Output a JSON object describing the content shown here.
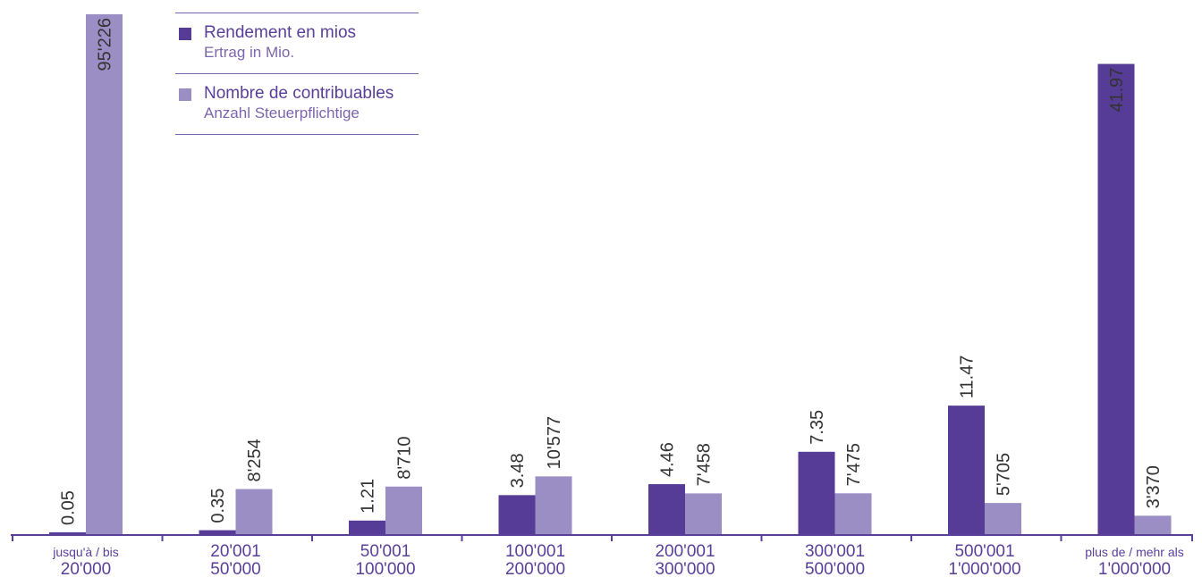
{
  "chart_data": {
    "type": "bar",
    "title": "",
    "xlabel": "",
    "ylabel": "",
    "categories": [
      {
        "top": "jusqu'à / bis",
        "bottom": "20'000"
      },
      {
        "top": "20'001",
        "bottom": "50'000"
      },
      {
        "top": "50'001",
        "bottom": "100'000"
      },
      {
        "top": "100'001",
        "bottom": "200'000"
      },
      {
        "top": "200'001",
        "bottom": "300'000"
      },
      {
        "top": "300'001",
        "bottom": "500'000"
      },
      {
        "top": "500'001",
        "bottom": "1'000'000"
      },
      {
        "top": "plus de / mehr als",
        "bottom": "1'000'000"
      }
    ],
    "series": [
      {
        "name": "Rendement en mios",
        "subname": "Ertrag in Mio.",
        "color": "#573c97",
        "values": [
          0.05,
          0.35,
          1.21,
          3.48,
          4.46,
          7.35,
          11.47,
          41.97
        ],
        "labels": [
          "0.05",
          "0.35",
          "1.21",
          "3.48",
          "4.46",
          "7.35",
          "11.47",
          "41.97"
        ],
        "scale_max": 46.4
      },
      {
        "name": "Nombre de contribuables",
        "subname": "Anzahl Steuerpflichtige",
        "color": "#9b8ec4",
        "values": [
          95226,
          8254,
          8710,
          10577,
          7458,
          7475,
          5705,
          3370
        ],
        "labels": [
          "95'226",
          "8'254",
          "8'710",
          "10'577",
          "7'458",
          "7'475",
          "5'705",
          "3'370"
        ],
        "scale_max": 95226
      }
    ],
    "legend_position": "top-left",
    "grid": false
  }
}
